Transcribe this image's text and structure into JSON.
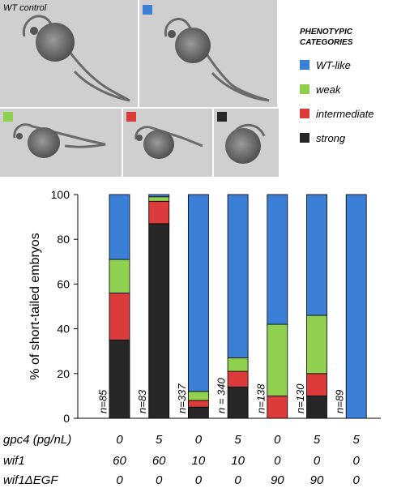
{
  "images": {
    "wt_control_label": "WT control"
  },
  "legend": {
    "title_line1": "PHENOTYPIC",
    "title_line2": "CATEGORIES",
    "items": [
      {
        "label": "WT-like",
        "color": "#3b7fd6"
      },
      {
        "label": "weak",
        "color": "#8fd14f"
      },
      {
        "label": "intermediate",
        "color": "#dc3b3b"
      },
      {
        "label": "strong",
        "color": "#272727"
      }
    ]
  },
  "chart_data": {
    "type": "bar",
    "stacked": true,
    "ylabel": "% of short-tailed embryos",
    "ylim": [
      0,
      100
    ],
    "yticks": [
      0,
      20,
      40,
      60,
      80,
      100
    ],
    "grid": false,
    "sample_sizes": [
      "n=85",
      "n=83",
      "n=337",
      "n = 340",
      "n=138",
      "n=130",
      "n=89"
    ],
    "series": [
      {
        "name": "strong",
        "color": "#272727",
        "values": [
          35,
          87,
          5,
          14,
          0,
          10,
          0
        ]
      },
      {
        "name": "intermediate",
        "color": "#dc3b3b",
        "values": [
          21,
          10,
          3,
          7,
          10,
          10,
          0
        ]
      },
      {
        "name": "weak",
        "color": "#8fd14f",
        "values": [
          15,
          2,
          4,
          6,
          32,
          26,
          0
        ]
      },
      {
        "name": "WT-like",
        "color": "#3b7fd6",
        "values": [
          29,
          1,
          88,
          73,
          58,
          54,
          100
        ]
      }
    ]
  },
  "conditions": [
    {
      "label": "gpc4 (pg/nL)",
      "values": [
        "0",
        "5",
        "0",
        "5",
        "0",
        "5",
        "5"
      ]
    },
    {
      "label": "wif1",
      "values": [
        "60",
        "60",
        "10",
        "10",
        "0",
        "0",
        "0"
      ]
    },
    {
      "label": "wif1ΔEGF",
      "values": [
        "0",
        "0",
        "0",
        "0",
        "90",
        "90",
        "0"
      ]
    }
  ]
}
